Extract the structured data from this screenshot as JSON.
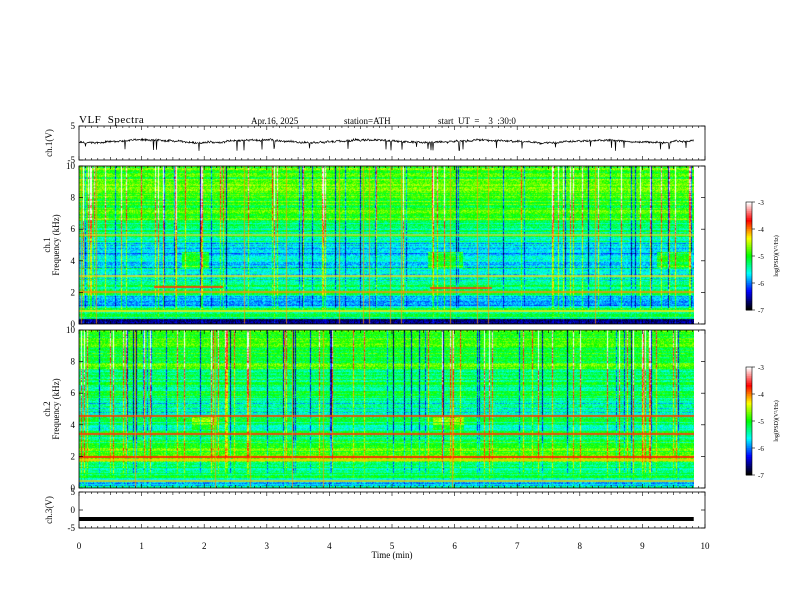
{
  "header": {
    "title": "VLF  Spectra",
    "date": "Apr.16, 2025",
    "station": "station=ATH",
    "start_ut": "start  UT  =    3  :30:0"
  },
  "colors": {
    "waveform": "#000000",
    "colormap": [
      "#000000",
      "#0000ff",
      "#00ffff",
      "#00ff00",
      "#ffff00",
      "#ff0000",
      "#ffffff"
    ]
  },
  "chart_data": [
    {
      "type": "line",
      "panel": "ch1-waveform",
      "ylabel": "ch.1(V)",
      "ylim": [
        -5,
        5
      ],
      "yticks": [
        "5",
        "-5"
      ],
      "xlim": [
        0,
        10
      ],
      "level_description": "noisy signal near +0.5 V, range about -1 to +1 V with sferic spikes"
    },
    {
      "type": "heatmap",
      "panel": "ch1-spectrogram",
      "ylabel": "ch.1 Frequency (kHz)",
      "ylim": [
        0,
        10
      ],
      "yticks": [
        "0",
        "2",
        "4",
        "6",
        "8",
        "10"
      ],
      "xlim": [
        0,
        10
      ],
      "colorbar": {
        "label": "log(PSD)(V²/Hz)",
        "range": [
          -7,
          -3
        ],
        "ticks": [
          "-3",
          "-4",
          "-5",
          "-6",
          "-7"
        ]
      }
    },
    {
      "type": "heatmap",
      "panel": "ch2-spectrogram",
      "ylabel": "ch.2 Frequency (kHz)",
      "ylim": [
        0,
        10
      ],
      "yticks": [
        "0",
        "2",
        "4",
        "6",
        "8",
        "10"
      ],
      "xlim": [
        0,
        10
      ],
      "colorbar": {
        "label": "log(PSD)(V²/Hz)",
        "range": [
          -7,
          -3
        ],
        "ticks": [
          "-3",
          "-4",
          "-5",
          "-6",
          "-7"
        ]
      }
    },
    {
      "type": "line",
      "panel": "ch3-waveform",
      "ylabel": "ch.3(V)",
      "ylim": [
        -5,
        5
      ],
      "yticks": [
        "5",
        "0",
        "-5"
      ],
      "xlim": [
        0,
        10
      ],
      "level": -2.5
    }
  ],
  "xaxis": {
    "label": "Time  (min)",
    "ticks": [
      "0",
      "1",
      "2",
      "3",
      "4",
      "5",
      "6",
      "7",
      "8",
      "9",
      "10"
    ],
    "data_end": 9.82
  }
}
